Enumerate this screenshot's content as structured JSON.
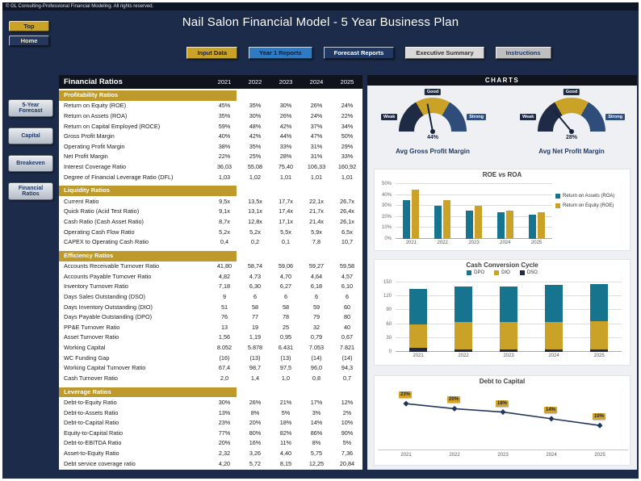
{
  "header": {
    "copyright": "© GL Consulting-Professional Financial Modeling. All rights reserved.",
    "title": "Nail Salon Financial Model - 5 Year Business Plan",
    "top_button": "Top",
    "home_button": "Home"
  },
  "tabs": [
    {
      "label": "Input Data"
    },
    {
      "label": "Year 1 Reports"
    },
    {
      "label": "Forecast Reports"
    },
    {
      "label": "Executive Summary"
    },
    {
      "label": "Instructions"
    }
  ],
  "sidebar": [
    {
      "label": "5-Year Forecast"
    },
    {
      "label": "Capital"
    },
    {
      "label": "Breakeven"
    },
    {
      "label": "Financial Ratios"
    }
  ],
  "table": {
    "title": "Financial Ratios",
    "years": [
      "2021",
      "2022",
      "2023",
      "2024",
      "2025"
    ],
    "sections": [
      {
        "name": "Profitability Ratios",
        "rows": [
          {
            "label": "Return on Equity (ROE)",
            "values": [
              "45%",
              "35%",
              "30%",
              "26%",
              "24%"
            ]
          },
          {
            "label": "Return on Assets (ROA)",
            "values": [
              "35%",
              "30%",
              "26%",
              "24%",
              "22%"
            ]
          },
          {
            "label": "Return on Capital Employed (ROCE)",
            "values": [
              "59%",
              "48%",
              "42%",
              "37%",
              "34%"
            ]
          },
          {
            "label": "Gross Profit Margin",
            "values": [
              "40%",
              "42%",
              "44%",
              "47%",
              "50%"
            ]
          },
          {
            "label": "Operating Profit Margin",
            "values": [
              "38%",
              "35%",
              "33%",
              "31%",
              "29%"
            ]
          },
          {
            "label": "Net Profit Margin",
            "values": [
              "22%",
              "25%",
              "28%",
              "31%",
              "33%"
            ]
          },
          {
            "label": "Interest Coverage Ratio",
            "values": [
              "36,03",
              "55,08",
              "75,40",
              "106,33",
              "160,92"
            ]
          },
          {
            "label": "Degree of Financial Leverage Ratio (DFL)",
            "values": [
              "1,03",
              "1,02",
              "1,01",
              "1,01",
              "1,01"
            ]
          }
        ]
      },
      {
        "name": "Liquidity Ratios",
        "rows": [
          {
            "label": "Current Ratio",
            "values": [
              "9,5x",
              "13,5x",
              "17,7x",
              "22,1x",
              "26,7x"
            ]
          },
          {
            "label": "Quick Ratio (Acid Test Ratio)",
            "values": [
              "9,1x",
              "13,1x",
              "17,4x",
              "21,7x",
              "26,4x"
            ]
          },
          {
            "label": "Cash Ratio (Cash Asset Ratio)",
            "values": [
              "8,7x",
              "12,8x",
              "17,1x",
              "21,4x",
              "26,1x"
            ]
          },
          {
            "label": "Operating Cash Flow Ratio",
            "values": [
              "5,2x",
              "5,2x",
              "5,5x",
              "5,9x",
              "6,5x"
            ]
          },
          {
            "label": "CAPEX to Operating Cash Ratio",
            "values": [
              "0,4",
              "0,2",
              "0,1",
              "7,8",
              "10,7"
            ]
          }
        ]
      },
      {
        "name": "Efficiency Ratios",
        "rows": [
          {
            "label": "Accounts Receivable Turnover Ratio",
            "values": [
              "41,80",
              "58,74",
              "59,06",
              "59,27",
              "59,58"
            ]
          },
          {
            "label": "Accounts Payable Turnover Ratio",
            "values": [
              "4,82",
              "4,73",
              "4,70",
              "4,64",
              "4,57"
            ]
          },
          {
            "label": "Inventory Turnover Ratio",
            "values": [
              "7,18",
              "6,30",
              "6,27",
              "6,18",
              "6,10"
            ]
          },
          {
            "label": "Days Sales Outstanding (DSO)",
            "values": [
              "9",
              "6",
              "6",
              "6",
              "6"
            ]
          },
          {
            "label": "Days Inventory Outstanding (DIO)",
            "values": [
              "51",
              "58",
              "58",
              "59",
              "60"
            ]
          },
          {
            "label": "Days Payable Outstanding (DPO)",
            "values": [
              "76",
              "77",
              "78",
              "79",
              "80"
            ]
          },
          {
            "label": "PP&E Turnover Ratio",
            "values": [
              "13",
              "19",
              "25",
              "32",
              "40"
            ]
          },
          {
            "label": "Asset Turnover Ratio",
            "values": [
              "1,56",
              "1,19",
              "0,95",
              "0,79",
              "0,67"
            ]
          },
          {
            "label": "Working Capital",
            "values": [
              "8.052",
              "5.878",
              "6.431",
              "7.053",
              "7.821"
            ]
          },
          {
            "label": "WC Funding Gap",
            "values": [
              "(16)",
              "(13)",
              "(13)",
              "(14)",
              "(14)"
            ]
          },
          {
            "label": "Working Capital Turnover Ratio",
            "values": [
              "67,4",
              "98,7",
              "97,5",
              "96,0",
              "94,3"
            ]
          },
          {
            "label": "Cash Turnover Ratio",
            "values": [
              "2,0",
              "1,4",
              "1,0",
              "0,8",
              "0,7"
            ]
          }
        ]
      },
      {
        "name": "Leverage Ratios",
        "rows": [
          {
            "label": "Debt-to-Equity Ratio",
            "values": [
              "30%",
              "26%",
              "21%",
              "17%",
              "12%"
            ]
          },
          {
            "label": "Debt-to-Assets Ratio",
            "values": [
              "13%",
              "8%",
              "5%",
              "3%",
              "2%"
            ]
          },
          {
            "label": "Debt-to-Capital Ratio",
            "values": [
              "23%",
              "20%",
              "18%",
              "14%",
              "10%"
            ]
          },
          {
            "label": "Equity-to-Capital Ratio",
            "values": [
              "77%",
              "80%",
              "82%",
              "86%",
              "90%"
            ]
          },
          {
            "label": "Debt-to-EBITDA Ratio",
            "values": [
              "20%",
              "16%",
              "11%",
              "8%",
              "5%"
            ]
          },
          {
            "label": "Asset-to-Equity Ratio",
            "values": [
              "2,32",
              "3,26",
              "4,40",
              "5,75",
              "7,36"
            ]
          },
          {
            "label": "Debt service coverage ratio",
            "values": [
              "4,20",
              "5,72",
              "8,15",
              "12,25",
              "20,84"
            ]
          }
        ]
      }
    ]
  },
  "charts": {
    "panel_title": "CHARTS",
    "gauges": [
      {
        "title": "Avg Gross Profit Margin",
        "value": "44%",
        "value_pct": 44,
        "labels": [
          "Weak",
          "Good",
          "Strong"
        ]
      },
      {
        "title": "Avg Net Profit Margin",
        "value": "28%",
        "value_pct": 28,
        "labels": [
          "Weak",
          "Good",
          "Strong"
        ]
      }
    ]
  },
  "chart_data": [
    {
      "type": "bar",
      "title": "ROE vs ROA",
      "categories": [
        "2021",
        "2022",
        "2023",
        "2024",
        "2025"
      ],
      "series": [
        {
          "name": "Return on Assets (ROA)",
          "color": "#17748f",
          "values": [
            35,
            30,
            26,
            24,
            22
          ]
        },
        {
          "name": "Return on Equity (ROE)",
          "color": "#c9a227",
          "values": [
            45,
            35,
            30,
            26,
            24
          ]
        }
      ],
      "ylim": [
        0,
        50
      ],
      "yticks": [
        "0%",
        "10%",
        "20%",
        "30%",
        "40%",
        "50%"
      ],
      "legend_position": "right",
      "grid": true
    },
    {
      "type": "bar",
      "stacked": true,
      "title": "Cash Conversion Cycle",
      "categories": [
        "2021",
        "2022",
        "2023",
        "2024",
        "2025"
      ],
      "series": [
        {
          "name": "DSO",
          "color": "#1f2a44",
          "values": [
            9,
            6,
            6,
            6,
            6
          ]
        },
        {
          "name": "DIO",
          "color": "#c9a227",
          "values": [
            51,
            58,
            58,
            59,
            60
          ]
        },
        {
          "name": "DPO",
          "color": "#17748f",
          "values": [
            76,
            77,
            78,
            79,
            80
          ]
        }
      ],
      "legend": [
        "DPO",
        "DIO",
        "DSO"
      ],
      "ylim": [
        0,
        150
      ],
      "yticks": [
        "0",
        "30",
        "60",
        "90",
        "120",
        "150"
      ],
      "legend_position": "top",
      "grid": true
    },
    {
      "type": "line",
      "title": "Debt to Capital",
      "categories": [
        "2021",
        "2022",
        "2023",
        "2024",
        "2025"
      ],
      "values": [
        23,
        20,
        18,
        14,
        10
      ],
      "labels": [
        "23%",
        "20%",
        "18%",
        "14%",
        "10%"
      ],
      "ylim": [
        0,
        25
      ],
      "color": "#20355e",
      "grid": false
    }
  ]
}
